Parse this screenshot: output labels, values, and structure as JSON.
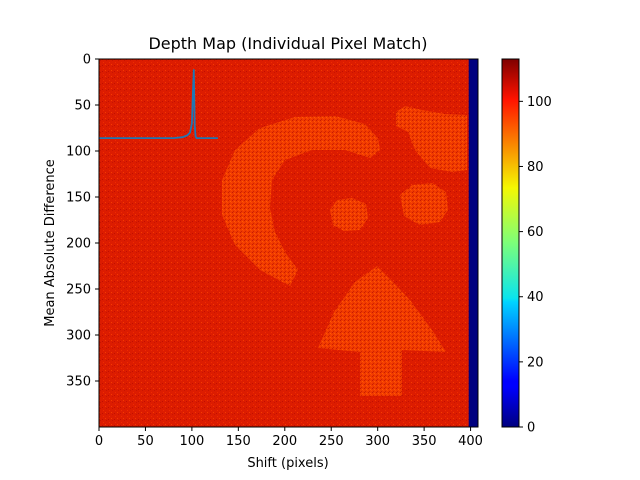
{
  "chart_data": {
    "type": "heatmap",
    "title": "Depth Map (Individual Pixel Match)",
    "xlabel": "Shift (pixels)",
    "ylabel": "Mean Absolute Difference",
    "x_range": [
      0,
      408
    ],
    "y_range": [
      400,
      0
    ],
    "x_ticks": [
      0,
      50,
      100,
      150,
      200,
      250,
      300,
      350,
      400
    ],
    "y_ticks": [
      0,
      50,
      100,
      150,
      200,
      250,
      300,
      350
    ],
    "colormap": "jet",
    "colorbar": {
      "range": [
        0,
        113
      ],
      "ticks": [
        0,
        20,
        40,
        60,
        80,
        100
      ]
    },
    "background_value": 106,
    "edge_strip": {
      "x_from": 398,
      "x_to": 408,
      "value": 0
    },
    "regions": [
      {
        "name": "C shape",
        "value": 98
      },
      {
        "name": "small blob",
        "value": 98
      },
      {
        "name": "top-right patch",
        "value": 98
      },
      {
        "name": "right blob",
        "value": 98
      },
      {
        "name": "arrow",
        "value": 98
      }
    ],
    "series": [
      {
        "color": "#1f77b4",
        "x": [
          0,
          20,
          40,
          60,
          80,
          90,
          95,
          98,
          100,
          101,
          102,
          103,
          104,
          105,
          110,
          120,
          128
        ],
        "y": [
          86,
          86,
          86,
          86,
          86,
          85,
          83,
          80,
          70,
          40,
          12,
          72,
          84,
          86,
          86,
          86,
          86
        ]
      }
    ]
  }
}
